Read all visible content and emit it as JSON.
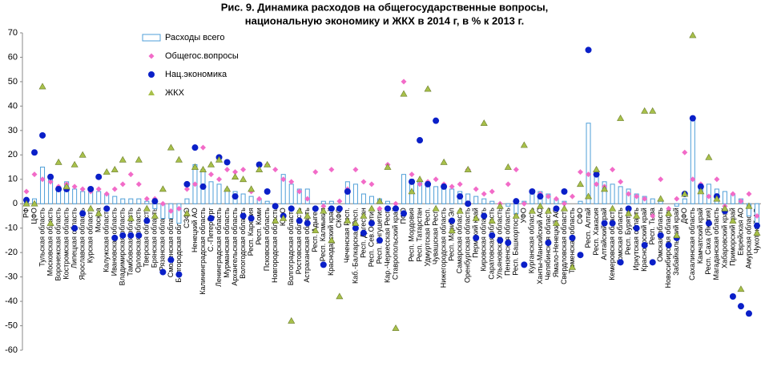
{
  "chart_data": {
    "type": "bar_markers",
    "title": [
      "Рис. 9. Динамика расходов на общегосударственные вопросы,",
      "национальную экономику и ЖКХ в 2014 г, в % к 2013 г."
    ],
    "categories": [
      "РФ",
      "ЦФО",
      "Тульская область",
      "Московская область",
      "Воронежская область",
      "Костромская область",
      "Липецкая область",
      "Ярославская область",
      "Курская область",
      "Москва",
      "Калужская область",
      "Ивановская область",
      "Владимирская область",
      "Тамбовская область",
      "Орловская область",
      "Тверская область",
      "Брянская область",
      "Рязанская область",
      "Смоленская область",
      "Белгородская область",
      "СЗФО",
      "Ненецкий АО",
      "Калининградская область",
      "С.-Петербург",
      "Ленинградская область",
      "Мурманская область",
      "Архангельская область",
      "Вологодская область",
      "Респ. Карелия",
      "Респ. Коми",
      "Псковская область",
      "Новгородская область",
      "ЮФО",
      "Волгоградская область",
      "Ростовская область",
      "Астраханская область",
      "Респ. Адыгея",
      "Респ. Калмыкия",
      "Краснодарский край",
      "СКФО",
      "Чеченская Респ.",
      "Каб.-Балкарская Респ.",
      "Респ. Дагестан",
      "Респ. Сев.Осетия",
      "Респ. Ингушетия",
      "Кар.-Черкесская Респ.",
      "Ставропольский край",
      "ПФО",
      "Респ. Мордовия",
      "Респ. Татарстан",
      "Удмуртская Респ.",
      "Чувашская Респ.",
      "Нижегородская область",
      "Респ. Марий Эл",
      "Самарская область",
      "Оренбургская область",
      "Пермский край",
      "Кировская область",
      "Саратовская область",
      "Ульяновская область",
      "Пензенская область",
      "Респ. Башкортостан",
      "УФО",
      "Курганская область",
      "Ханты-Мансийский АО",
      "Челябинская область",
      "Ямало-Ненецкий АО",
      "Свердловская область",
      "Тюменская область",
      "СФО",
      "Респ. Алтай",
      "Респ. Хакасия",
      "Алтайский край",
      "Кемеровская область",
      "Томская область",
      "Респ. Бурятия",
      "Иркутская область",
      "Красноярский край",
      "Респ. Тыва",
      "Омская область",
      "Новосибирская область",
      "Забайкальский край",
      "ДФО",
      "Сахалинская область",
      "Камчатский край",
      "Респ. Саха (Якутия)",
      "Магаданская область",
      "Хабаровский край",
      "Приморский край",
      "Еврейская АО",
      "Амурская область",
      "Чукотский АО"
    ],
    "series": [
      {
        "name": "Расходы всего",
        "marker": "bar",
        "color": "#4f9fd8",
        "values": [
          1,
          2,
          15,
          11,
          7,
          9,
          6,
          5,
          5,
          5,
          4,
          3,
          2,
          2,
          2,
          1,
          -2,
          -6,
          -6,
          -8,
          2,
          16,
          14,
          9,
          8,
          6,
          5,
          4,
          3,
          2,
          1,
          0,
          12,
          8,
          6,
          6,
          0,
          1,
          1,
          0,
          9,
          8,
          4,
          3,
          2,
          1,
          0,
          12,
          10,
          9,
          8,
          7,
          7,
          6,
          5,
          4,
          3,
          2,
          1,
          0,
          -1,
          -4,
          1,
          5,
          5,
          4,
          2,
          1,
          0,
          1,
          33,
          12,
          9,
          8,
          7,
          6,
          4,
          3,
          2,
          1,
          0,
          -1,
          2,
          35,
          8,
          8,
          6,
          5,
          4,
          2,
          -5,
          -10
        ]
      },
      {
        "name": "Общегос.вопросы",
        "marker": "diamond",
        "color": "#f26bc8",
        "values": [
          5,
          12,
          10,
          9,
          7,
          8,
          7,
          6,
          5,
          6,
          4,
          6,
          8,
          12,
          8,
          2,
          2,
          0,
          -3,
          -2,
          6,
          8,
          23,
          12,
          10,
          14,
          13,
          14,
          5,
          2,
          16,
          14,
          10,
          9,
          5,
          2,
          13,
          -1,
          14,
          1,
          6,
          14,
          9,
          8,
          -2,
          16,
          0,
          50,
          12,
          8,
          9,
          10,
          8,
          7,
          8,
          14,
          6,
          4,
          5,
          0,
          8,
          14,
          0,
          5,
          4,
          3,
          2,
          0,
          3,
          13,
          12,
          8,
          7,
          14,
          9,
          4,
          3,
          2,
          -5,
          10,
          -2,
          2,
          21,
          10,
          8,
          3,
          10,
          -1,
          4,
          1,
          4,
          -5
        ]
      },
      {
        "name": "Нац.экономика",
        "marker": "circle",
        "color": "#0a1fc8",
        "values": [
          1.5,
          21,
          28,
          11,
          6,
          6,
          -10,
          -4,
          6,
          11,
          -2,
          -14,
          -13,
          -13,
          -13,
          -7,
          1,
          -28,
          -23,
          -29,
          8,
          23,
          7,
          -6,
          19,
          17,
          3,
          -5,
          -6,
          16,
          5,
          -1,
          -5,
          -2,
          -7,
          -8,
          -2,
          -25,
          -2,
          -2,
          5,
          -10,
          -12,
          -8,
          -15,
          -2,
          -2,
          -4,
          9,
          26,
          8,
          34,
          7,
          -7,
          3,
          0,
          -14,
          -5,
          -13,
          -15,
          -16,
          1,
          -25,
          5,
          3,
          -16,
          -2,
          5,
          -14,
          -21,
          63,
          12,
          -8,
          -8,
          -24,
          -2,
          -10,
          -17,
          -24,
          -13,
          -17,
          -14,
          4,
          35,
          7,
          -8,
          3,
          -3,
          -38,
          -42,
          -45,
          -9
        ]
      },
      {
        "name": "ЖКХ",
        "marker": "triangle",
        "color": "#a8c04a",
        "values": [
          0,
          0,
          48,
          -8,
          17,
          7,
          16,
          20,
          -2,
          -4,
          13,
          14,
          18,
          -6,
          18,
          -2,
          -5,
          6,
          23,
          18,
          -4,
          15,
          14,
          16,
          18,
          6,
          11,
          10,
          6,
          14,
          16,
          -7,
          -6,
          -48,
          -3,
          -5,
          -11,
          -3,
          -15,
          -38,
          -7,
          -8,
          -5,
          -2,
          1,
          15,
          -51,
          45,
          5,
          10,
          47,
          -2,
          17,
          -11,
          -3,
          14,
          -6,
          33,
          -7,
          -1,
          15,
          -5,
          24,
          -3,
          -1,
          -3,
          -8,
          -2,
          -26,
          8,
          3,
          14,
          6,
          -2,
          35,
          -4,
          -5,
          38,
          38,
          2,
          -4,
          -13,
          4,
          69,
          5,
          19,
          2,
          -2,
          -7,
          -35,
          -1,
          -12
        ]
      }
    ],
    "ylim": [
      -60,
      70
    ],
    "yticks": [
      -60,
      -50,
      -40,
      -30,
      -20,
      -10,
      0,
      10,
      20,
      30,
      40,
      50,
      60,
      70
    ],
    "legend": "upper left"
  }
}
